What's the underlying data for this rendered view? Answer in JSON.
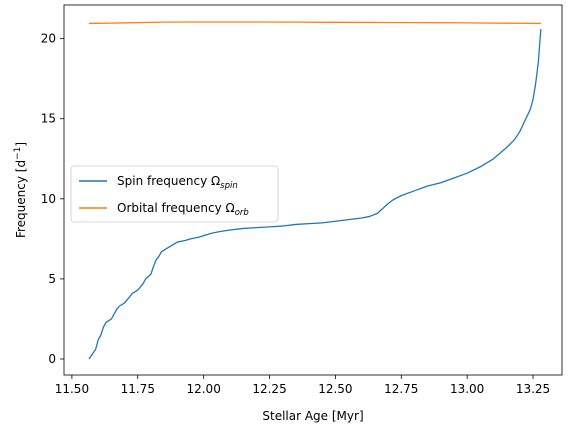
{
  "chart_data": {
    "type": "line",
    "xlabel": "Stellar Age [Myr]",
    "ylabel_main": "Frequency [d",
    "ylabel_sup": "−1",
    "ylabel_end": "]",
    "xlim": [
      11.47,
      13.36
    ],
    "ylim": [
      -1.0,
      22.1
    ],
    "xticks": [
      11.5,
      11.75,
      12.0,
      12.25,
      12.5,
      12.75,
      13.0,
      13.25
    ],
    "xtick_labels": [
      "11.50",
      "11.75",
      "12.00",
      "12.25",
      "12.50",
      "12.75",
      "13.00",
      "13.25"
    ],
    "yticks": [
      0,
      5,
      10,
      15,
      20
    ],
    "ytick_labels": [
      "0",
      "5",
      "10",
      "15",
      "20"
    ],
    "grid": false,
    "legend_position": "center-left",
    "series": [
      {
        "name": "Spin frequency Ω",
        "name_sub": "spin",
        "color": "#1f77b4",
        "x": [
          11.565,
          11.59,
          11.6,
          11.61,
          11.62,
          11.63,
          11.65,
          11.67,
          11.68,
          11.7,
          11.72,
          11.73,
          11.75,
          11.77,
          11.78,
          11.8,
          11.81,
          11.82,
          11.83,
          11.84,
          11.86,
          11.88,
          11.9,
          11.93,
          11.95,
          11.98,
          12.0,
          12.03,
          12.06,
          12.1,
          12.15,
          12.2,
          12.25,
          12.3,
          12.35,
          12.4,
          12.45,
          12.5,
          12.55,
          12.6,
          12.63,
          12.66,
          12.68,
          12.7,
          12.72,
          12.75,
          12.8,
          12.85,
          12.9,
          12.95,
          13.0,
          13.05,
          13.1,
          13.15,
          13.18,
          13.2,
          13.22,
          13.24,
          13.25,
          13.26,
          13.27,
          13.275,
          13.28
        ],
        "y": [
          0.0,
          0.6,
          1.2,
          1.5,
          2.0,
          2.3,
          2.5,
          3.1,
          3.3,
          3.5,
          3.9,
          4.1,
          4.3,
          4.7,
          5.0,
          5.3,
          5.8,
          6.2,
          6.4,
          6.7,
          6.9,
          7.1,
          7.3,
          7.4,
          7.5,
          7.6,
          7.7,
          7.85,
          7.95,
          8.05,
          8.15,
          8.2,
          8.25,
          8.3,
          8.4,
          8.45,
          8.5,
          8.6,
          8.7,
          8.8,
          8.9,
          9.1,
          9.4,
          9.7,
          9.95,
          10.2,
          10.5,
          10.8,
          11.0,
          11.3,
          11.6,
          12.0,
          12.5,
          13.2,
          13.7,
          14.2,
          14.9,
          15.6,
          16.2,
          17.2,
          18.5,
          19.6,
          20.6
        ]
      },
      {
        "name": "Orbital frequency Ω",
        "name_sub": "orb",
        "color": "#ff7f0e",
        "x": [
          11.565,
          11.65,
          11.75,
          11.85,
          11.95,
          12.05,
          12.2,
          12.35,
          12.5,
          12.65,
          12.8,
          12.95,
          13.1,
          13.2,
          13.28
        ],
        "y": [
          20.95,
          20.97,
          21.0,
          21.03,
          21.04,
          21.04,
          21.04,
          21.03,
          21.02,
          21.01,
          21.0,
          20.99,
          20.97,
          20.96,
          20.95
        ]
      }
    ]
  }
}
